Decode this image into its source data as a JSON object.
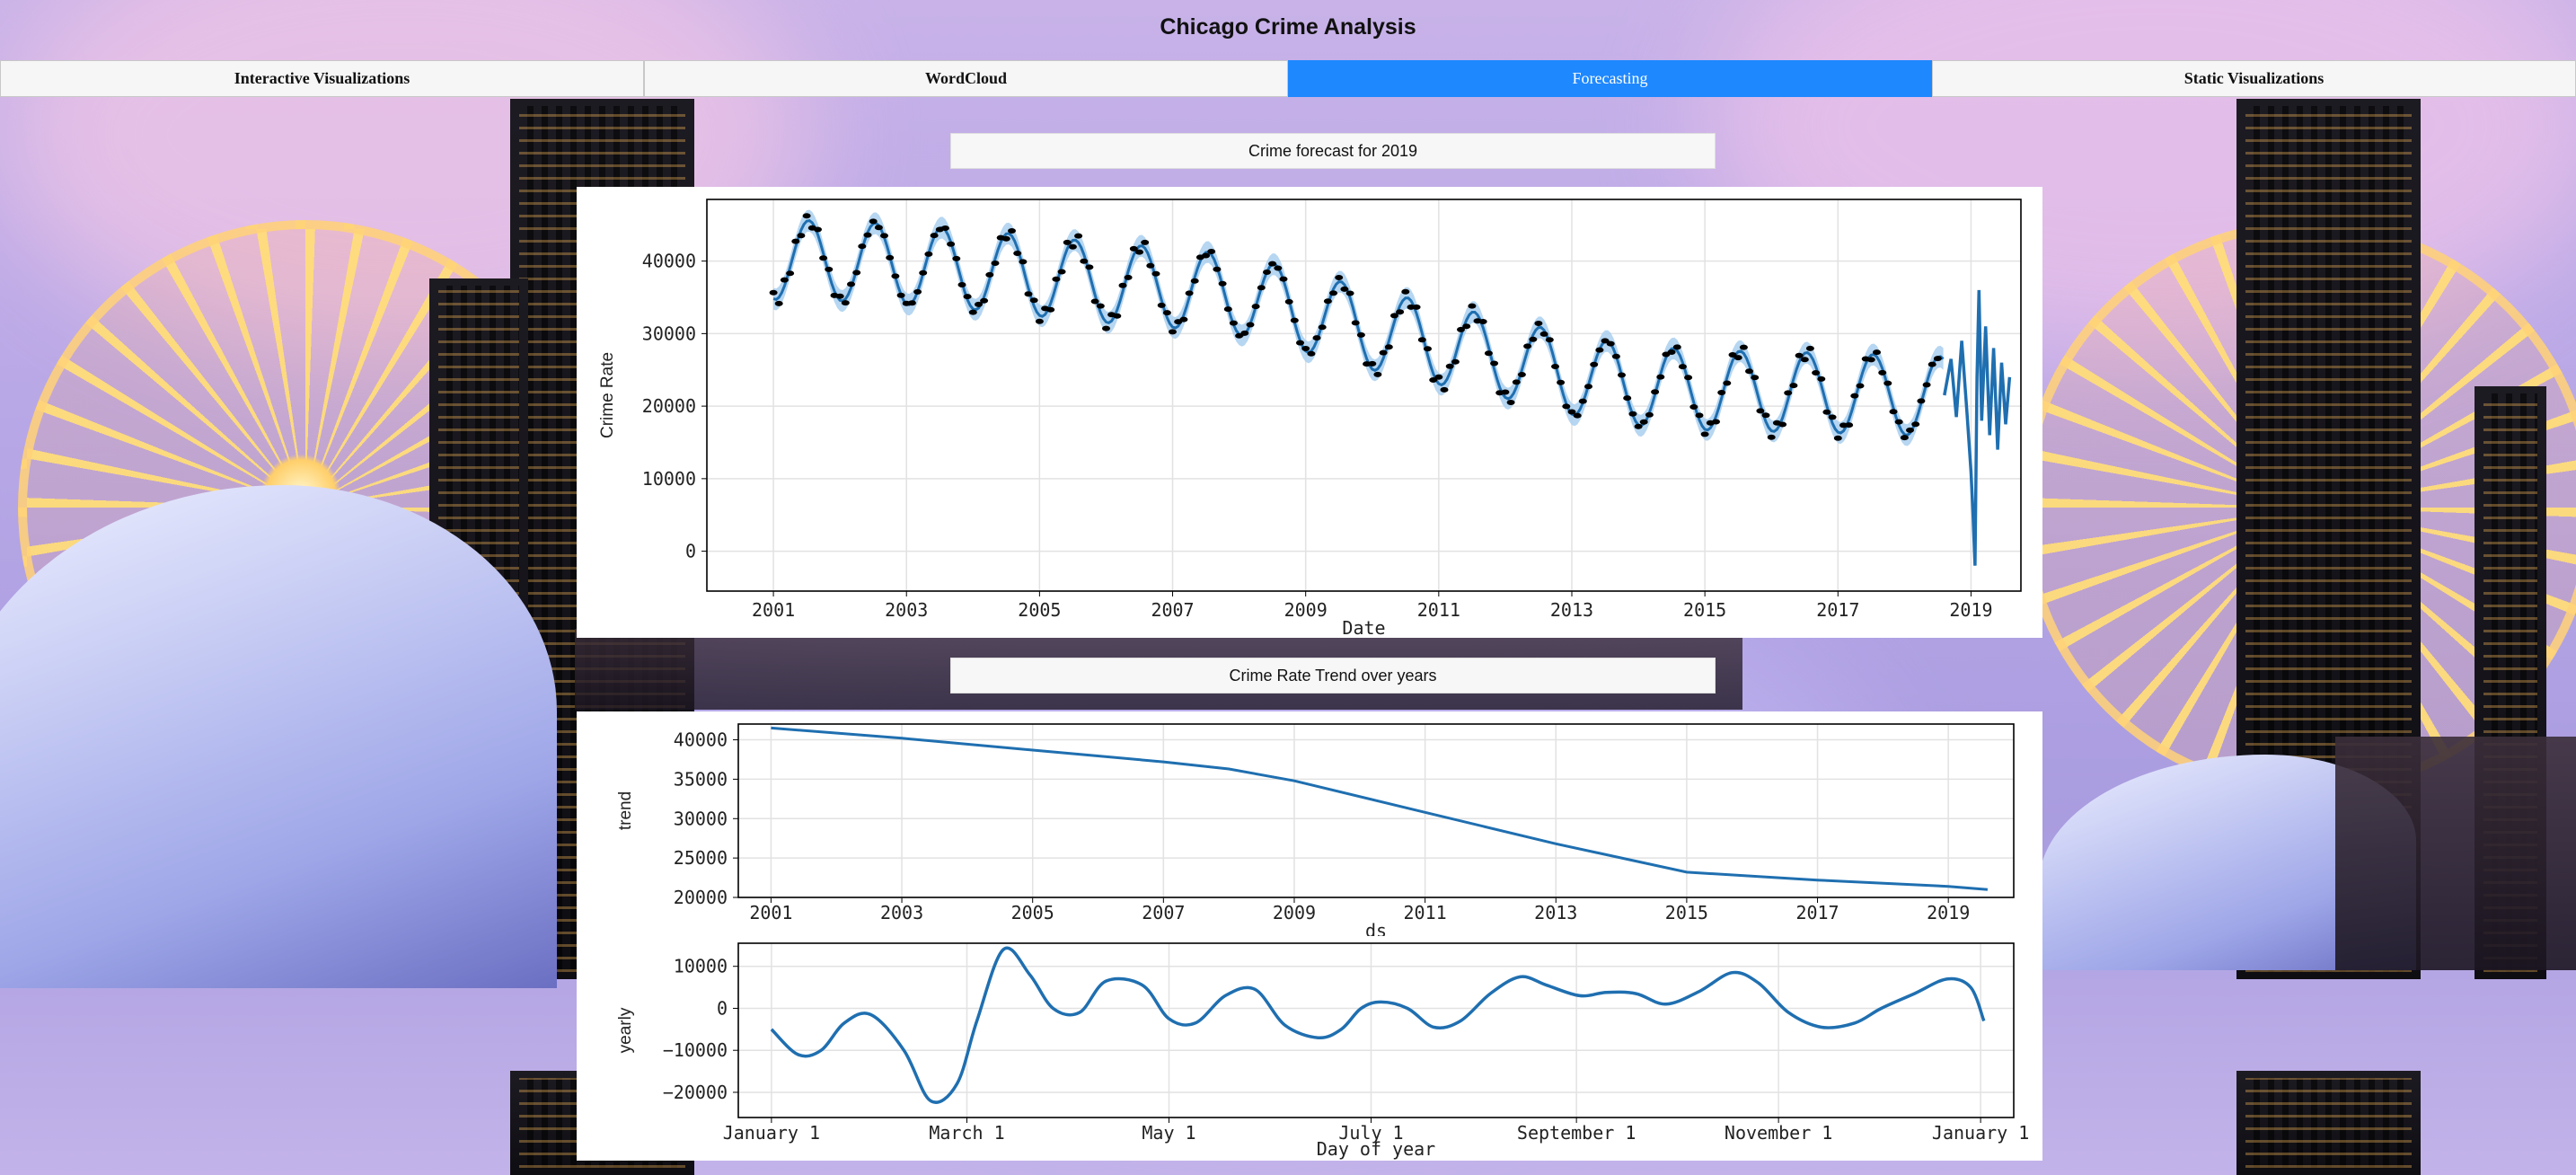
{
  "page": {
    "title": "Chicago Crime Analysis"
  },
  "tabs": [
    {
      "label": "Interactive Visualizations",
      "active": false
    },
    {
      "label": "WordCloud",
      "active": false
    },
    {
      "label": "Forecasting",
      "active": true
    },
    {
      "label": "Static Visualizations",
      "active": false
    }
  ],
  "colors": {
    "active_tab": "#1e88ff",
    "series": "#1f6fb0",
    "band": "#a9cfee"
  },
  "sections": {
    "forecast_label": "Crime forecast for 2019",
    "trend_label": "Crime Rate Trend over years"
  },
  "chart_data": [
    {
      "type": "line",
      "name": "forecast",
      "xlabel": "Date",
      "ylabel": "Crime Rate",
      "xlim": [
        2000.0,
        2019.75
      ],
      "ylim": [
        -5500,
        48500
      ],
      "xticks": [
        "2001",
        "2003",
        "2005",
        "2007",
        "2009",
        "2011",
        "2013",
        "2015",
        "2017",
        "2019"
      ],
      "yticks": [
        "0",
        "10000",
        "20000",
        "30000",
        "40000"
      ],
      "grid": true,
      "year_means": [
        [
          2001.0,
          40200
        ],
        [
          2002.0,
          40000
        ],
        [
          2003.0,
          39500
        ],
        [
          2004.0,
          38800
        ],
        [
          2005.0,
          37900
        ],
        [
          2006.0,
          37000
        ],
        [
          2007.0,
          36300
        ],
        [
          2008.0,
          35300
        ],
        [
          2009.0,
          33000
        ],
        [
          2010.0,
          30500
        ],
        [
          2011.0,
          28500
        ],
        [
          2012.0,
          26600
        ],
        [
          2013.0,
          24300
        ],
        [
          2014.0,
          22800
        ],
        [
          2015.0,
          22200
        ],
        [
          2016.0,
          22000
        ],
        [
          2017.0,
          21800
        ],
        [
          2018.0,
          21500
        ],
        [
          2019.0,
          21200
        ]
      ],
      "seasonal_amplitude": 5500,
      "band_halfwidth": 1500,
      "forecast_2019": [
        [
          2018.6,
          21500
        ],
        [
          2018.7,
          26500
        ],
        [
          2018.78,
          18500
        ],
        [
          2018.86,
          29000
        ],
        [
          2018.94,
          19000
        ],
        [
          2019.0,
          11000
        ],
        [
          2019.03,
          5000
        ],
        [
          2019.06,
          -2000
        ],
        [
          2019.09,
          24000
        ],
        [
          2019.12,
          36000
        ],
        [
          2019.16,
          18000
        ],
        [
          2019.22,
          31000
        ],
        [
          2019.28,
          16000
        ],
        [
          2019.34,
          28000
        ],
        [
          2019.4,
          14000
        ],
        [
          2019.46,
          26000
        ],
        [
          2019.52,
          17500
        ],
        [
          2019.58,
          24000
        ]
      ]
    },
    {
      "type": "line",
      "name": "trend",
      "xlabel": "ds",
      "ylabel": "trend",
      "xlim": [
        2000.5,
        2020.0
      ],
      "ylim": [
        20000,
        42000
      ],
      "xticks": [
        "2001",
        "2003",
        "2005",
        "2007",
        "2009",
        "2011",
        "2013",
        "2015",
        "2017",
        "2019"
      ],
      "yticks": [
        "20000",
        "25000",
        "30000",
        "35000",
        "40000"
      ],
      "x": [
        2001.0,
        2003.0,
        2005.0,
        2007.0,
        2008.0,
        2009.0,
        2011.0,
        2013.0,
        2015.0,
        2017.0,
        2019.0,
        2019.6
      ],
      "y": [
        41500,
        40200,
        38700,
        37200,
        36300,
        34800,
        30800,
        26800,
        23200,
        22200,
        21400,
        21000
      ]
    },
    {
      "type": "line",
      "name": "yearly",
      "xlabel": "Day of year",
      "ylabel": "yearly",
      "xlim": [
        -10,
        375
      ],
      "ylim": [
        -26000,
        15500
      ],
      "xticks": [
        [
          0,
          "January 1"
        ],
        [
          59,
          "March 1"
        ],
        [
          120,
          "May 1"
        ],
        [
          181,
          "July 1"
        ],
        [
          243,
          "September 1"
        ],
        [
          304,
          "November 1"
        ],
        [
          365,
          "January 1"
        ]
      ],
      "yticks": [
        "−20000",
        "−10000",
        "0",
        "10000"
      ],
      "x": [
        0,
        8,
        15,
        22,
        30,
        40,
        48,
        56,
        62,
        70,
        78,
        85,
        93,
        101,
        112,
        120,
        128,
        137,
        146,
        155,
        165,
        172,
        178,
        184,
        192,
        200,
        208,
        217,
        226,
        234,
        244,
        252,
        261,
        270,
        280,
        290,
        298,
        307,
        317,
        327,
        335,
        345,
        355,
        362,
        366
      ],
      "y": [
        -5000,
        -11000,
        -10000,
        -3500,
        -1500,
        -10000,
        -22000,
        -18000,
        -3000,
        14000,
        8000,
        0,
        -1000,
        6500,
        5500,
        -2500,
        -3500,
        3000,
        4500,
        -4000,
        -7000,
        -5000,
        0,
        1500,
        0,
        -4500,
        -3000,
        3500,
        7500,
        5500,
        3000,
        3800,
        3500,
        1000,
        4000,
        8500,
        6000,
        -1000,
        -4500,
        -3500,
        0,
        3500,
        7000,
        5000,
        -3000
      ]
    }
  ]
}
